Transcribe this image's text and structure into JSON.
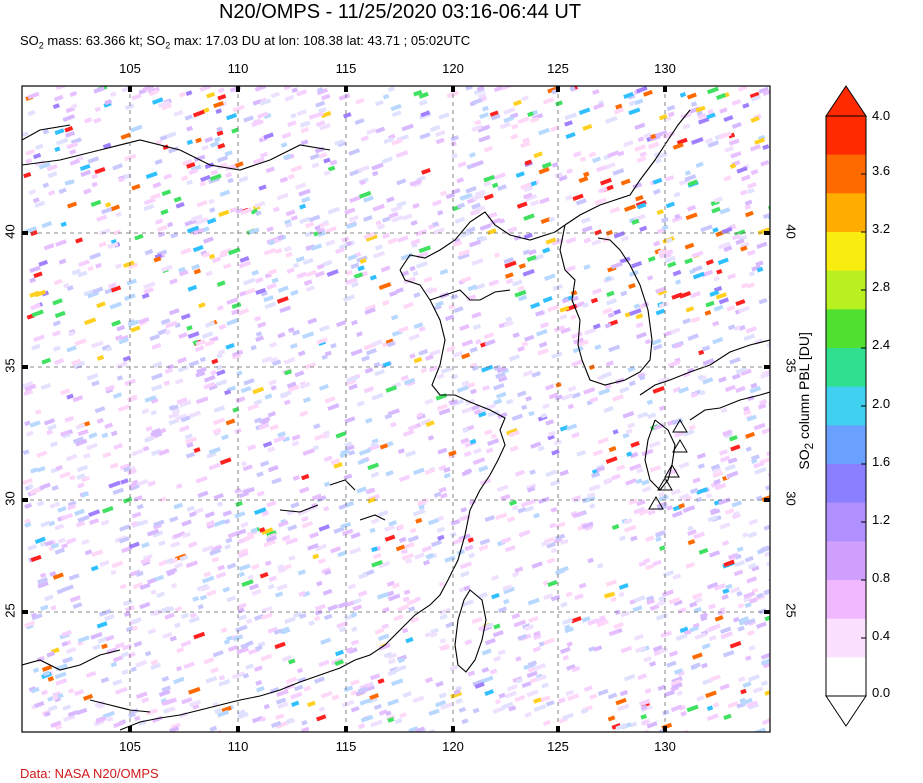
{
  "header": {
    "title": "N20/OMPS - 11/25/2020 03:16-06:44 UT",
    "stats_prefix": "SO",
    "stats_sub": "2",
    "stats_mass": " mass: 63.366 kt; SO",
    "stats_sub2": "2",
    "stats_rest": " max: 17.03 DU at lon: 108.38 lat: 43.71 ; 05:02UTC"
  },
  "credit": "Data: NASA N20/OMPS",
  "map": {
    "lon_ticks": [
      "105",
      "110",
      "115",
      "120",
      "125",
      "130"
    ],
    "lat_ticks": [
      "40",
      "35",
      "30",
      "25"
    ]
  },
  "colorbar": {
    "labels": [
      "4.0",
      "3.6",
      "3.2",
      "2.8",
      "2.4",
      "2.0",
      "1.6",
      "1.2",
      "0.8",
      "0.4",
      "0.0"
    ],
    "title_prefix": "SO",
    "title_sub": "2",
    "title_rest": " column PBL [DU]",
    "colors": [
      "#ff2a00",
      "#ff6a00",
      "#ffae00",
      "#f8ec10",
      "#b8f020",
      "#50e030",
      "#30e090",
      "#40d0f0",
      "#6aa0ff",
      "#8a80ff",
      "#b090ff",
      "#d0a0ff",
      "#f0b8ff",
      "#fbe0ff",
      "#ffffff"
    ]
  }
}
